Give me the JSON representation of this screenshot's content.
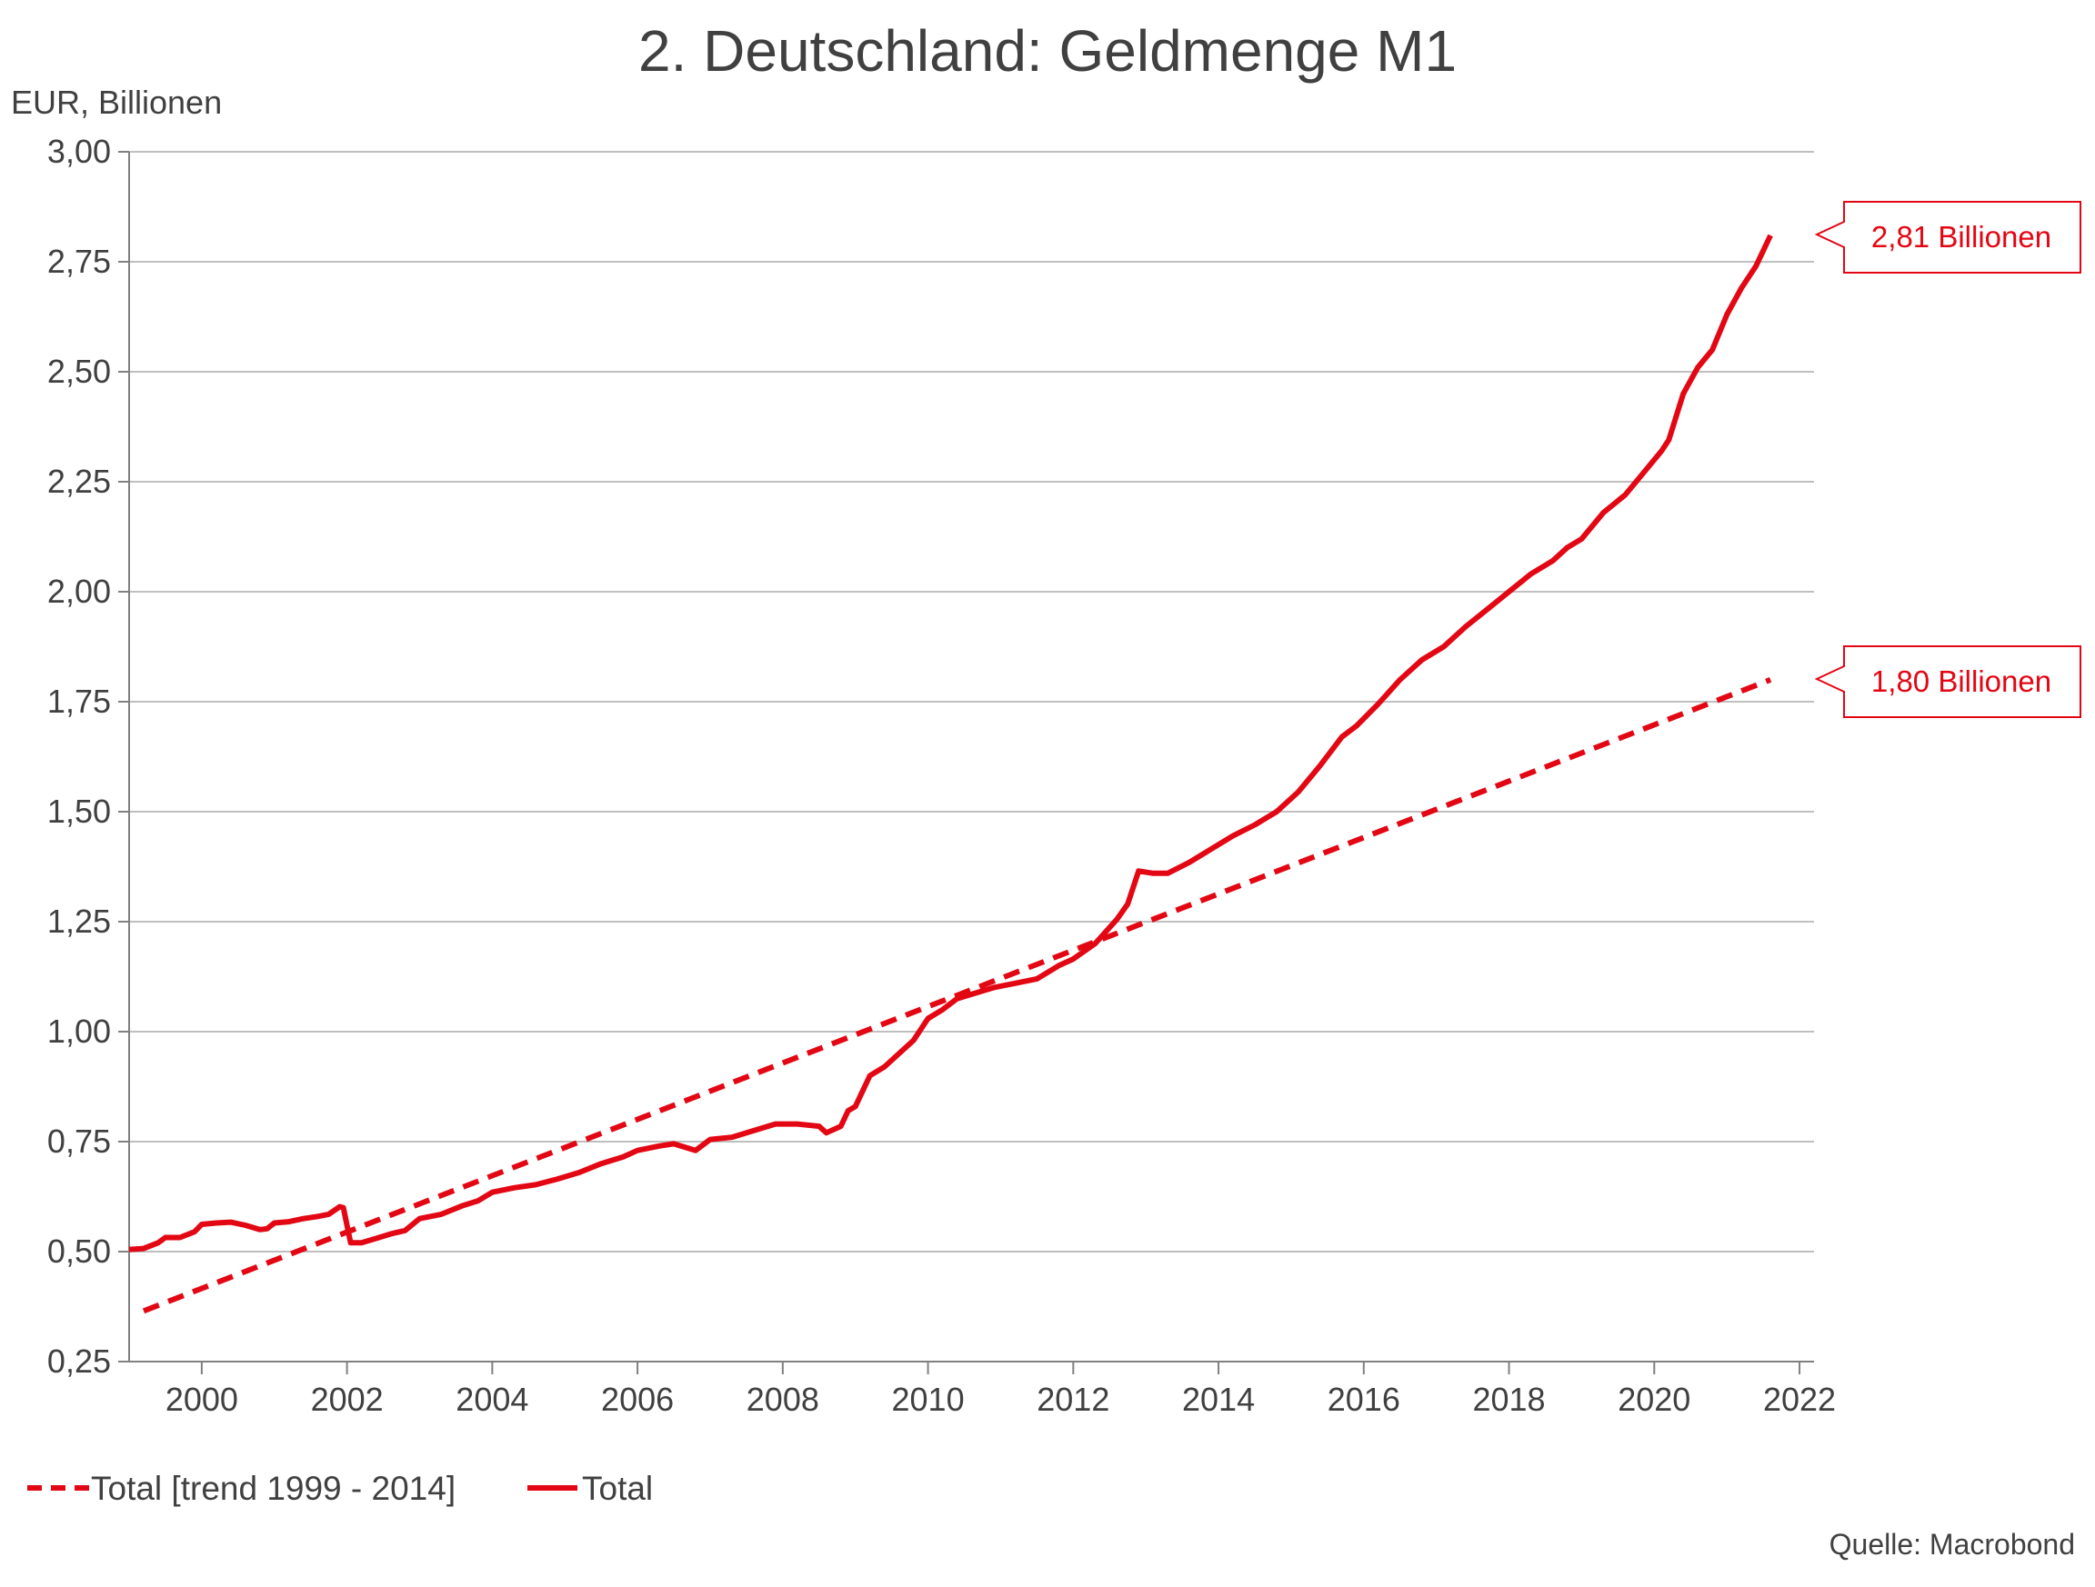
{
  "title": "2. Deutschland: Geldmenge M1",
  "unit_label": "EUR, Billionen",
  "source": "Quelle: Macrobond",
  "colors": {
    "series": "#e30613",
    "text": "#404040",
    "grid": "#bfbfbf"
  },
  "callouts": {
    "total": "2,81 Billionen",
    "trend": "1,80 Billionen"
  },
  "legend": {
    "trend": "Total [trend 1999 - 2014]",
    "total": "Total"
  },
  "chart_data": {
    "type": "line",
    "title": "2. Deutschland: Geldmenge M1",
    "ylabel": "EUR, Billionen",
    "xlim": [
      1999.0,
      2022.2
    ],
    "ylim": [
      0.25,
      3.0
    ],
    "y_ticks": [
      0.25,
      0.5,
      0.75,
      1.0,
      1.25,
      1.5,
      1.75,
      2.0,
      2.25,
      2.5,
      2.75,
      3.0
    ],
    "y_tick_labels": [
      "0,25",
      "0,50",
      "0,75",
      "1,00",
      "1,25",
      "1,50",
      "1,75",
      "2,00",
      "2,25",
      "2,50",
      "2,75",
      "3,00"
    ],
    "x_ticks": [
      2000,
      2002,
      2004,
      2006,
      2008,
      2010,
      2012,
      2014,
      2016,
      2018,
      2020,
      2022
    ],
    "x_tick_labels": [
      "2000",
      "2002",
      "2004",
      "2006",
      "2008",
      "2010",
      "2012",
      "2014",
      "2016",
      "2018",
      "2020",
      "2022"
    ],
    "grid": true,
    "legend_position": "bottom-left",
    "series": [
      {
        "name": "Total [trend 1999 - 2014]",
        "style": "dashed",
        "x": [
          1999.2,
          2021.6
        ],
        "y": [
          0.365,
          1.8
        ]
      },
      {
        "name": "Total",
        "style": "solid",
        "x": [
          1999.0,
          1999.2,
          1999.4,
          1999.5,
          1999.7,
          1999.9,
          2000.0,
          2000.2,
          2000.4,
          2000.6,
          2000.8,
          2000.9,
          2001.0,
          2001.2,
          2001.4,
          2001.6,
          2001.75,
          2001.9,
          2001.95,
          2002.05,
          2002.2,
          2002.4,
          2002.6,
          2002.8,
          2003.0,
          2003.3,
          2003.6,
          2003.8,
          2004.0,
          2004.3,
          2004.6,
          2004.9,
          2005.2,
          2005.5,
          2005.8,
          2006.0,
          2006.3,
          2006.5,
          2006.8,
          2007.0,
          2007.3,
          2007.6,
          2007.9,
          2008.2,
          2008.5,
          2008.6,
          2008.8,
          2008.9,
          2009.0,
          2009.2,
          2009.4,
          2009.6,
          2009.8,
          2010.0,
          2010.2,
          2010.4,
          2010.6,
          2010.9,
          2011.2,
          2011.5,
          2011.8,
          2012.0,
          2012.3,
          2012.6,
          2012.75,
          2012.9,
          2013.1,
          2013.3,
          2013.6,
          2013.9,
          2014.2,
          2014.5,
          2014.8,
          2015.1,
          2015.4,
          2015.7,
          2015.9,
          2016.2,
          2016.5,
          2016.8,
          2017.1,
          2017.4,
          2017.7,
          2018.0,
          2018.3,
          2018.6,
          2018.8,
          2019.0,
          2019.3,
          2019.6,
          2019.9,
          2020.1,
          2020.2,
          2020.4,
          2020.6,
          2020.8,
          2021.0,
          2021.2,
          2021.4,
          2021.6
        ],
        "y": [
          0.505,
          0.507,
          0.52,
          0.532,
          0.532,
          0.545,
          0.562,
          0.565,
          0.567,
          0.56,
          0.55,
          0.552,
          0.565,
          0.568,
          0.575,
          0.58,
          0.585,
          0.602,
          0.6,
          0.52,
          0.52,
          0.53,
          0.54,
          0.548,
          0.575,
          0.585,
          0.605,
          0.615,
          0.635,
          0.645,
          0.652,
          0.665,
          0.68,
          0.7,
          0.715,
          0.73,
          0.74,
          0.745,
          0.73,
          0.755,
          0.76,
          0.775,
          0.79,
          0.79,
          0.785,
          0.77,
          0.785,
          0.82,
          0.83,
          0.9,
          0.92,
          0.95,
          0.98,
          1.03,
          1.05,
          1.075,
          1.085,
          1.1,
          1.11,
          1.12,
          1.15,
          1.165,
          1.2,
          1.255,
          1.29,
          1.365,
          1.36,
          1.36,
          1.385,
          1.415,
          1.445,
          1.47,
          1.5,
          1.545,
          1.605,
          1.67,
          1.695,
          1.745,
          1.8,
          1.845,
          1.875,
          1.92,
          1.96,
          2.0,
          2.04,
          2.07,
          2.1,
          2.12,
          2.18,
          2.22,
          2.28,
          2.32,
          2.345,
          2.45,
          2.51,
          2.55,
          2.63,
          2.69,
          2.74,
          2.81
        ]
      }
    ]
  }
}
